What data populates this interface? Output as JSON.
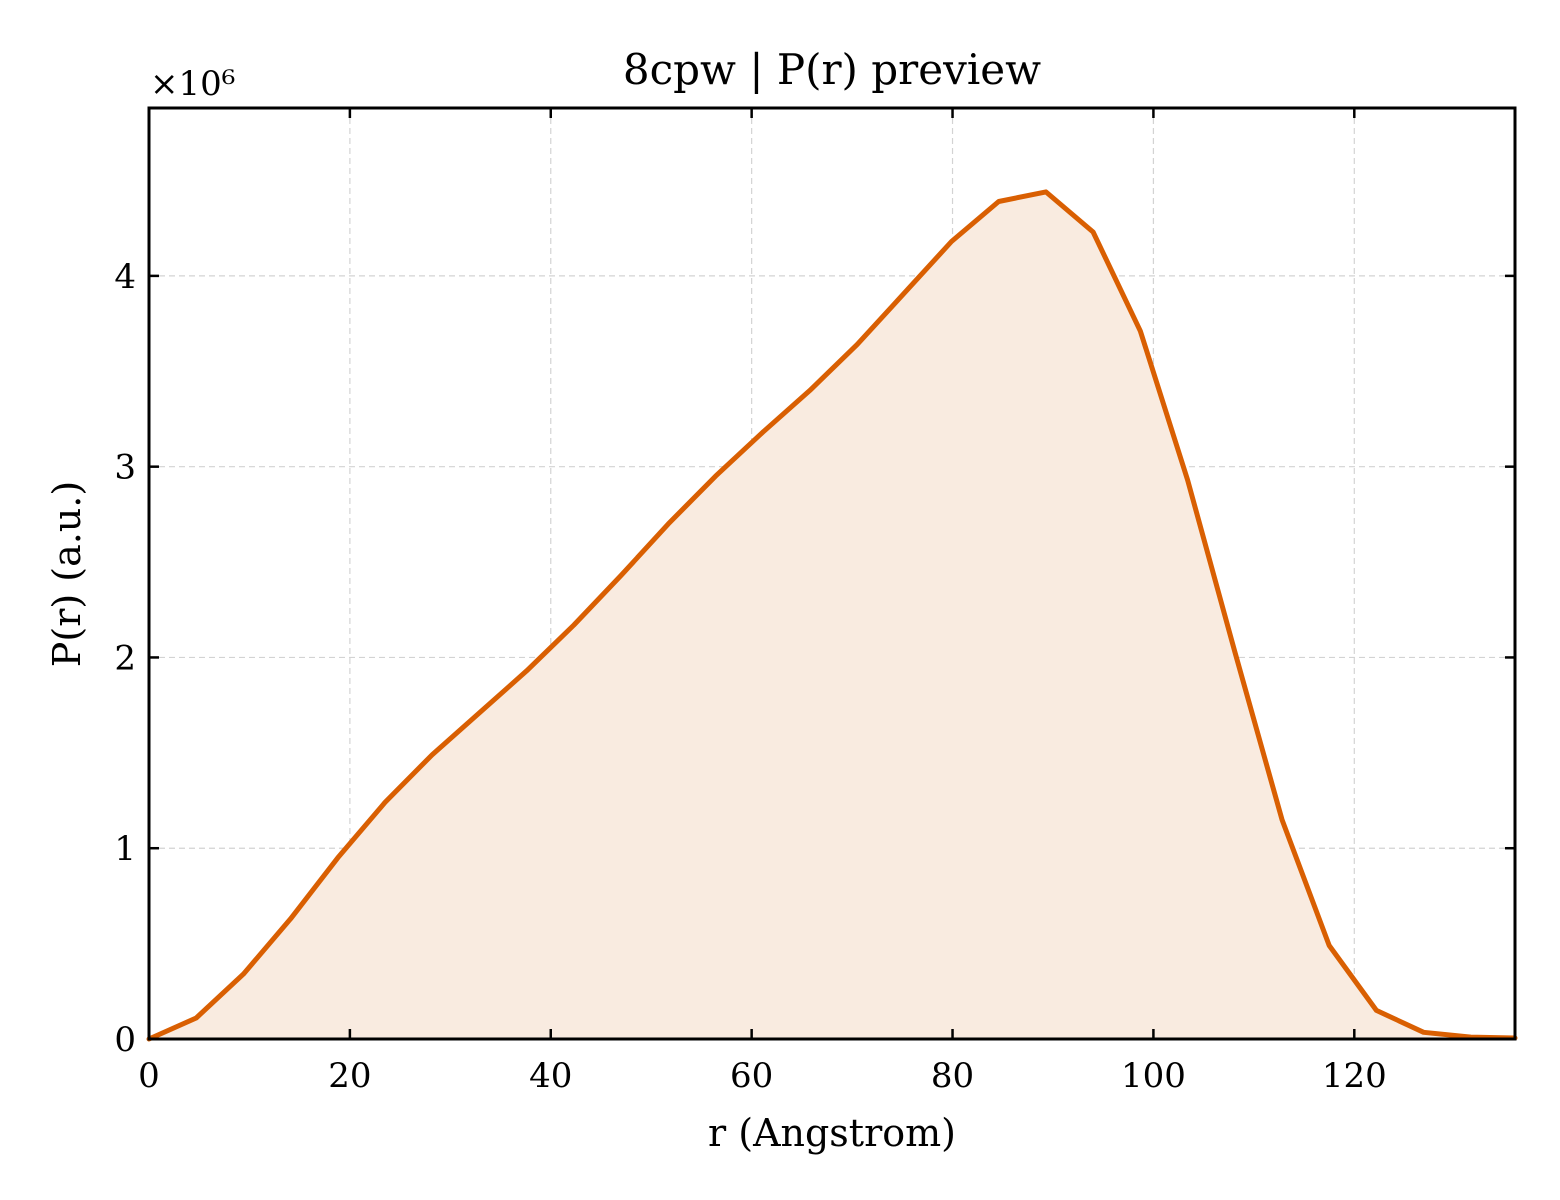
{
  "chart_data": {
    "type": "area",
    "title": "8cpw | P(r) preview",
    "xlabel": "r (Angstrom)",
    "ylabel": "P(r) (a.u.)",
    "y_scale_label": "×10⁶",
    "xlim": [
      0,
      136
    ],
    "ylim": [
      0,
      4.88
    ],
    "xticks": [
      0,
      20,
      40,
      60,
      80,
      100,
      120
    ],
    "yticks": [
      0,
      1,
      2,
      3,
      4
    ],
    "grid": true,
    "line_color": "#d95f02",
    "fill_color": "#f9ebe0",
    "series": [
      {
        "x": [
          0,
          4.7,
          9.4,
          14.1,
          18.8,
          23.5,
          28.2,
          32.9,
          37.6,
          42.3,
          47.0,
          51.7,
          56.4,
          61.1,
          65.8,
          70.5,
          75.2,
          79.9,
          84.6,
          89.3,
          94.0,
          98.7,
          103.4,
          108.1,
          112.8,
          117.5,
          122.2,
          126.9,
          131.6,
          136.0
        ],
        "y": [
          0.0,
          0.11,
          0.34,
          0.63,
          0.95,
          1.24,
          1.49,
          1.71,
          1.93,
          2.17,
          2.43,
          2.7,
          2.95,
          3.18,
          3.4,
          3.64,
          3.91,
          4.18,
          4.39,
          4.44,
          4.23,
          3.71,
          2.93,
          2.03,
          1.15,
          0.49,
          0.15,
          0.035,
          0.01,
          0.005
        ]
      }
    ]
  }
}
